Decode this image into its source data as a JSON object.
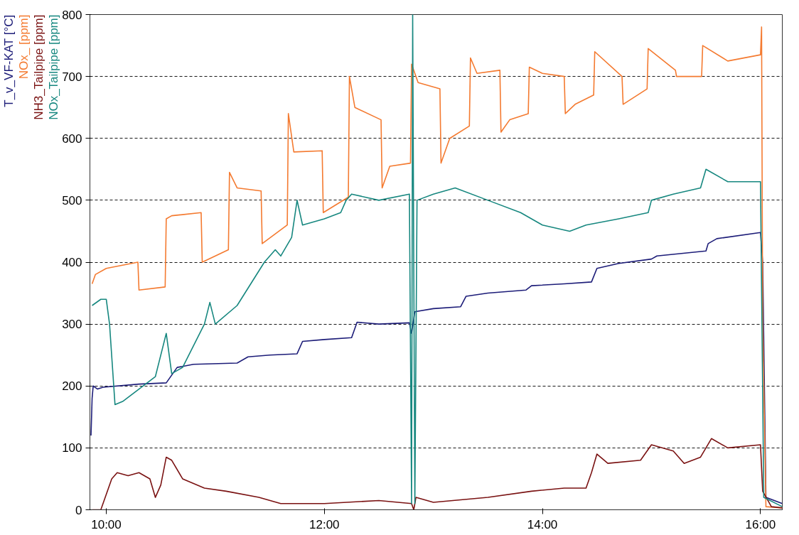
{
  "chart_data": {
    "type": "line",
    "xlim": [
      9.85,
      16.2
    ],
    "ylim": [
      0,
      800
    ],
    "xticks": [
      {
        "value": 10,
        "label": "10:00"
      },
      {
        "value": 12,
        "label": "12:00"
      },
      {
        "value": 14,
        "label": "14:00"
      },
      {
        "value": 16,
        "label": "16:00"
      }
    ],
    "yticks": [
      0,
      100,
      200,
      300,
      400,
      500,
      600,
      700,
      800
    ],
    "grid": "y",
    "line_style": "solid",
    "series": [
      {
        "name": "T_v_VF-KAT [°C]",
        "color": "#1c1c78",
        "x": [
          9.86,
          9.87,
          9.88,
          9.92,
          9.97,
          10.3,
          10.55,
          10.65,
          10.8,
          11.2,
          11.3,
          11.5,
          11.75,
          11.8,
          12.0,
          12.25,
          12.3,
          12.5,
          12.78,
          12.8,
          12.83,
          13.0,
          13.25,
          13.3,
          13.5,
          13.85,
          13.9,
          14.2,
          14.45,
          14.5,
          14.7,
          15.0,
          15.05,
          15.5,
          15.52,
          15.6,
          16.0,
          16.02,
          16.05,
          16.2
        ],
        "values": [
          120,
          180,
          200,
          195,
          198,
          203,
          205,
          230,
          235,
          237,
          247,
          250,
          252,
          272,
          275,
          278,
          303,
          300,
          302,
          285,
          320,
          325,
          328,
          345,
          350,
          355,
          362,
          365,
          368,
          390,
          398,
          405,
          410,
          418,
          430,
          438,
          448,
          400,
          20,
          10
        ]
      },
      {
        "name": "NOx_ [ppm]",
        "color": "#f47a30",
        "x": [
          9.87,
          9.9,
          10.0,
          10.29,
          10.3,
          10.54,
          10.55,
          10.6,
          10.87,
          10.88,
          11.12,
          11.13,
          11.2,
          11.42,
          11.43,
          11.66,
          11.67,
          11.72,
          11.98,
          11.99,
          12.22,
          12.23,
          12.28,
          12.52,
          12.53,
          12.6,
          12.79,
          12.8,
          12.86,
          13.06,
          13.07,
          13.15,
          13.33,
          13.34,
          13.4,
          13.61,
          13.62,
          13.7,
          13.87,
          13.88,
          14.0,
          14.2,
          14.21,
          14.3,
          14.47,
          14.48,
          14.73,
          14.74,
          14.96,
          14.97,
          15.22,
          15.23,
          15.46,
          15.47,
          15.7,
          16.0,
          16.01,
          16.02,
          16.05,
          16.2
        ],
        "values": [
          365,
          380,
          390,
          400,
          355,
          360,
          470,
          475,
          480,
          400,
          420,
          545,
          520,
          515,
          430,
          460,
          640,
          578,
          580,
          480,
          505,
          700,
          650,
          630,
          520,
          555,
          560,
          720,
          690,
          680,
          560,
          600,
          620,
          730,
          705,
          710,
          610,
          630,
          640,
          715,
          705,
          700,
          640,
          655,
          670,
          740,
          700,
          655,
          680,
          745,
          710,
          700,
          700,
          750,
          725,
          735,
          780,
          300,
          5,
          3
        ]
      },
      {
        "name": "NH3_Tailpipe [ppm]",
        "color": "#7a1212",
        "x": [
          9.87,
          9.95,
          10.05,
          10.1,
          10.2,
          10.3,
          10.4,
          10.45,
          10.5,
          10.55,
          10.6,
          10.7,
          10.9,
          11.1,
          11.4,
          11.6,
          12.0,
          12.5,
          12.8,
          12.82,
          12.84,
          13.0,
          13.5,
          13.9,
          14.2,
          14.4,
          14.45,
          14.5,
          14.6,
          14.9,
          15.0,
          15.2,
          15.3,
          15.45,
          15.55,
          15.7,
          16.0,
          16.02,
          16.1,
          16.2
        ],
        "values": [
          0,
          0,
          50,
          60,
          55,
          60,
          50,
          20,
          40,
          85,
          80,
          50,
          35,
          30,
          20,
          10,
          10,
          15,
          10,
          0,
          20,
          12,
          20,
          30,
          35,
          35,
          60,
          90,
          75,
          80,
          105,
          95,
          75,
          85,
          115,
          100,
          105,
          30,
          5,
          3
        ]
      },
      {
        "name": "NOx_Tailpipe [ppm]",
        "color": "#16877f",
        "x": [
          9.87,
          9.95,
          10.0,
          10.03,
          10.08,
          10.15,
          10.45,
          10.55,
          10.6,
          10.7,
          10.9,
          10.95,
          11.0,
          11.2,
          11.45,
          11.55,
          11.6,
          11.7,
          11.75,
          11.8,
          12.0,
          12.15,
          12.2,
          12.25,
          12.5,
          12.78,
          12.8,
          12.81,
          12.83,
          12.85,
          13.0,
          13.2,
          13.5,
          13.8,
          14.0,
          14.25,
          14.4,
          14.7,
          14.97,
          15.0,
          15.2,
          15.45,
          15.5,
          15.7,
          16.0,
          16.03,
          16.2
        ],
        "values": [
          330,
          340,
          340,
          300,
          170,
          175,
          215,
          285,
          220,
          230,
          300,
          335,
          300,
          330,
          400,
          420,
          410,
          440,
          500,
          460,
          470,
          480,
          500,
          510,
          500,
          510,
          10,
          800,
          10,
          500,
          510,
          520,
          500,
          480,
          460,
          450,
          460,
          470,
          480,
          500,
          510,
          520,
          550,
          530,
          530,
          20,
          5
        ]
      }
    ]
  }
}
